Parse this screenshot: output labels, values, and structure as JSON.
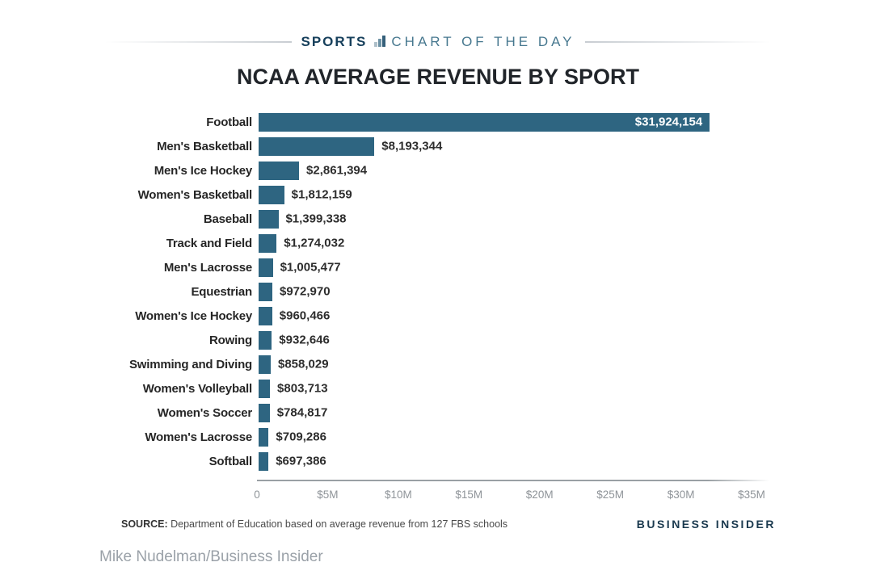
{
  "header": {
    "kicker_left": "SPORTS",
    "kicker_right": "CHART OF THE DAY",
    "icon": "bar-chart-icon"
  },
  "title": "NCAA AVERAGE REVENUE BY SPORT",
  "chart_data": {
    "type": "bar",
    "orientation": "horizontal",
    "title": "NCAA AVERAGE REVENUE BY SPORT",
    "categories": [
      "Football",
      "Men's Basketball",
      "Men's Ice Hockey",
      "Women's Basketball",
      "Baseball",
      "Track and Field",
      "Men's Lacrosse",
      "Equestrian",
      "Women's Ice Hockey",
      "Rowing",
      "Swimming and Diving",
      "Women's Volleyball",
      "Women's Soccer",
      "Women's Lacrosse",
      "Softball"
    ],
    "values": [
      31924154,
      8193344,
      2861394,
      1812159,
      1399338,
      1274032,
      1005477,
      972970,
      960466,
      932646,
      858029,
      803713,
      784817,
      709286,
      697386
    ],
    "value_labels": [
      "$31,924,154",
      "$8,193,344",
      "$2,861,394",
      "$1,812,159",
      "$1,399,338",
      "$1,274,032",
      "$1,005,477",
      "$972,970",
      "$960,466",
      "$932,646",
      "$858,029",
      "$803,713",
      "$784,817",
      "$709,286",
      "$697,386"
    ],
    "xlim": [
      0,
      35000000
    ],
    "x_ticks": [
      "0",
      "$5M",
      "$10M",
      "$15M",
      "$20M",
      "$25M",
      "$30M",
      "$35M"
    ],
    "x_tick_values": [
      0,
      5000000,
      10000000,
      15000000,
      20000000,
      25000000,
      30000000,
      35000000
    ],
    "bar_color": "#2e6581",
    "grid": false,
    "legend": "none",
    "value_label_position": "outside-except-first-inside"
  },
  "footer": {
    "source_label": "SOURCE:",
    "source_text": " Department of Education based on average revenue from 127 FBS schools",
    "brand": "BUSINESS INSIDER"
  },
  "credit": "Mike Nudelman/Business Insider"
}
